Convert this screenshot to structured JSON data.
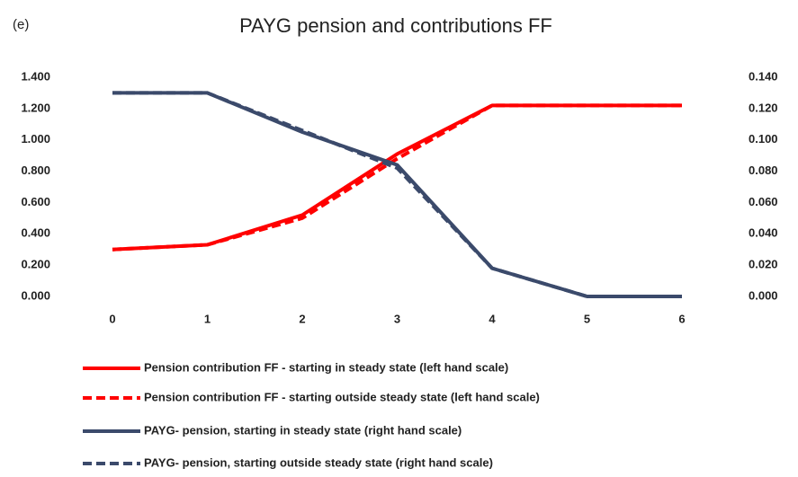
{
  "chart_data": {
    "type": "line",
    "panel_label": "(e)",
    "title": "PAYG pension and contributions FF",
    "categories": [
      "0",
      "1",
      "2",
      "3",
      "4",
      "5",
      "6"
    ],
    "ylim": [
      0,
      1.4
    ],
    "yticks": [
      {
        "value": 0,
        "label": "0.000"
      },
      {
        "value": 0.2,
        "label": "0.200"
      },
      {
        "value": 0.4,
        "label": "0.400"
      },
      {
        "value": 0.6,
        "label": "0.600"
      },
      {
        "value": 0.8,
        "label": "0.800"
      },
      {
        "value": 1.0,
        "label": "1.000"
      },
      {
        "value": 1.2,
        "label": "1.200"
      },
      {
        "value": 1.4,
        "label": "1.400"
      }
    ],
    "y2lim": [
      0,
      0.14
    ],
    "y2ticks": [
      {
        "value": 0,
        "label": "0.000"
      },
      {
        "value": 0.02,
        "label": "0.020"
      },
      {
        "value": 0.04,
        "label": "0.040"
      },
      {
        "value": 0.06,
        "label": "0.060"
      },
      {
        "value": 0.08,
        "label": "0.080"
      },
      {
        "value": 0.1,
        "label": "0.100"
      },
      {
        "value": 0.12,
        "label": "0.120"
      },
      {
        "value": 0.14,
        "label": "0.140"
      }
    ],
    "grid": false,
    "legend": "bottom",
    "series": [
      {
        "name": "Pension contribution FF - starting in steady state (left hand scale)",
        "color": "#ff0000",
        "dashed": false,
        "axis": "y",
        "values": [
          0.3,
          0.33,
          0.52,
          0.91,
          1.22,
          1.22,
          1.22
        ]
      },
      {
        "name": "Pension contribution FF - starting outside steady state (left hand scale)",
        "color": "#ff0000",
        "dashed": true,
        "axis": "y",
        "values": [
          0.3,
          0.33,
          0.5,
          0.88,
          1.22,
          1.22,
          1.22
        ]
      },
      {
        "name": "PAYG- pension, starting in steady state (right hand scale)",
        "color": "#3b4a6b",
        "dashed": false,
        "axis": "y2",
        "values": [
          0.13,
          0.13,
          0.105,
          0.084,
          0.018,
          0.0,
          0.0
        ]
      },
      {
        "name": "PAYG- pension, starting outside steady state (right hand scale)",
        "color": "#3b4a6b",
        "dashed": true,
        "axis": "y2",
        "values": [
          0.13,
          0.13,
          0.106,
          0.082,
          0.018,
          0.0,
          0.0
        ]
      }
    ]
  }
}
